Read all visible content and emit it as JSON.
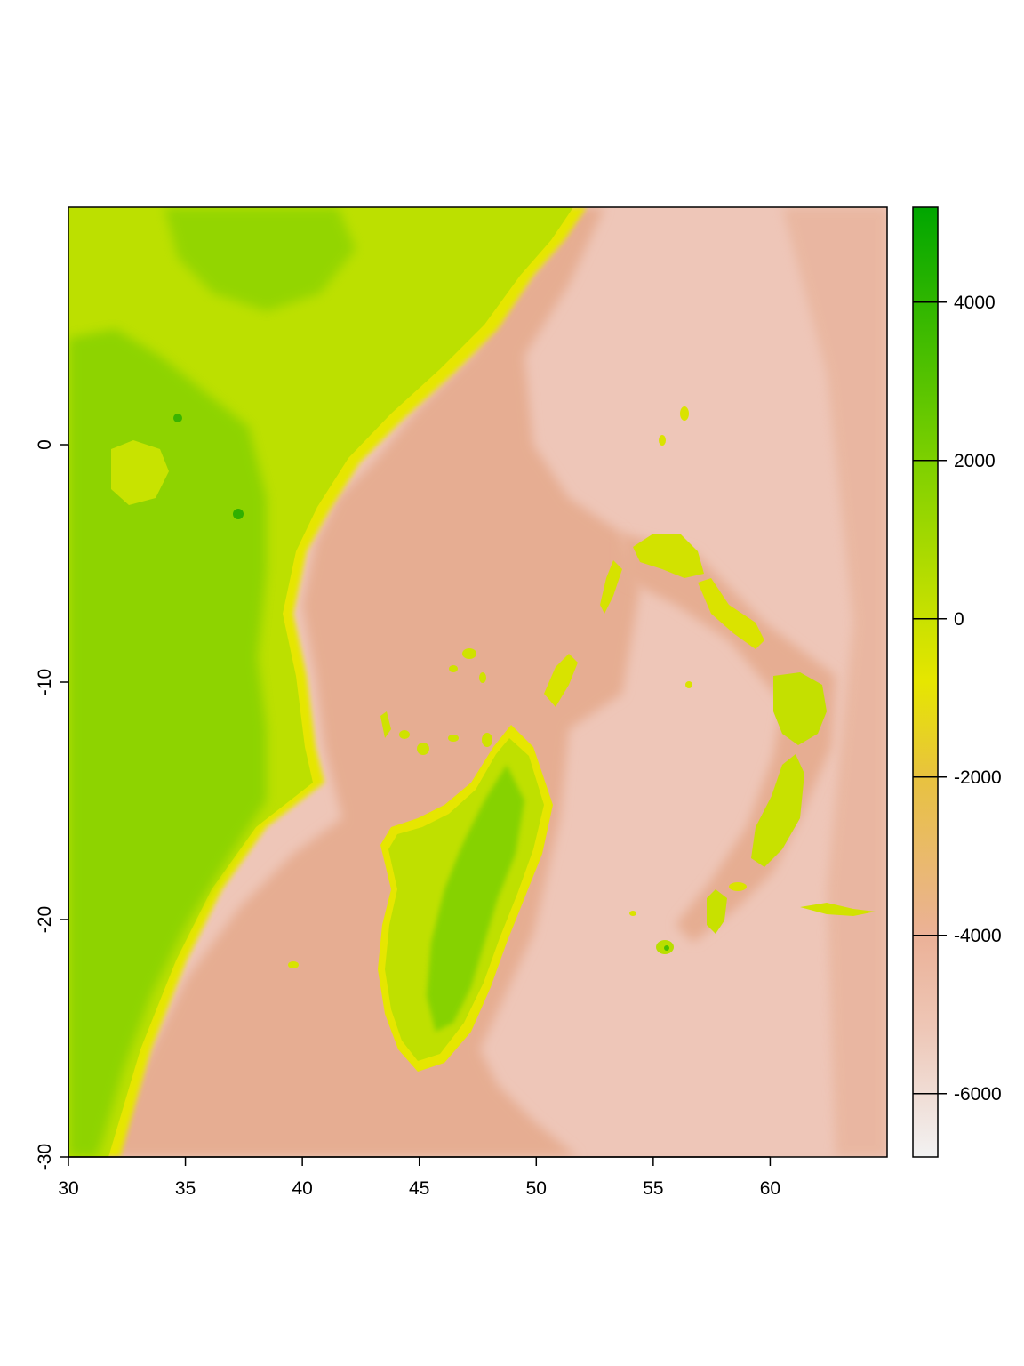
{
  "chart_data": {
    "type": "heatmap",
    "title": "",
    "xlabel": "",
    "ylabel": "",
    "xlim": [
      30,
      65
    ],
    "ylim": [
      -30,
      10
    ],
    "x_ticks": [
      30,
      35,
      40,
      45,
      50,
      55,
      60
    ],
    "y_ticks": [
      0,
      -10,
      -20,
      -30
    ],
    "x_tick_labels": [
      "30",
      "35",
      "40",
      "45",
      "50",
      "55",
      "60"
    ],
    "y_tick_labels": [
      "0",
      "-10",
      "-20",
      "-30"
    ],
    "legend": {
      "placement": "right",
      "range": [
        -6800,
        5200
      ],
      "ticks": [
        4000,
        2000,
        0,
        -2000,
        -4000,
        -6000
      ],
      "tick_labels": [
        "4000",
        "2000",
        "0",
        "-2000",
        "-4000",
        "-6000"
      ],
      "color_stops": [
        {
          "value": -6800,
          "color": "#f2f2f2"
        },
        {
          "value": -5200,
          "color": "#eec7b7"
        },
        {
          "value": -4000,
          "color": "#ebb197"
        },
        {
          "value": -2000,
          "color": "#e8c23f"
        },
        {
          "value": -800,
          "color": "#e6e600"
        },
        {
          "value": 0,
          "color": "#c9e100"
        },
        {
          "value": 2000,
          "color": "#7dd000"
        },
        {
          "value": 5200,
          "color": "#00a600"
        }
      ]
    },
    "regions": {
      "ocean": {
        "color": "#eec6b8"
      },
      "shelf": {
        "color": "#e6ad92"
      },
      "coast": {
        "color": "#e6e600"
      },
      "lowland": {
        "color": "#bce000"
      },
      "highland": {
        "color": "#86d100"
      }
    }
  }
}
